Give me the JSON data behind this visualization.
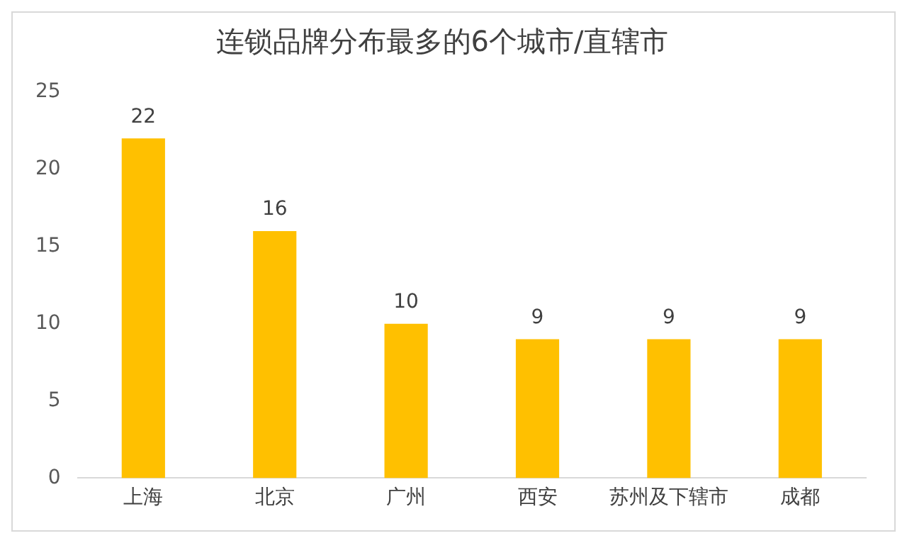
{
  "chart_data": {
    "type": "bar",
    "title": "连锁品牌分布最多的6个城市/直辖市",
    "categories": [
      "上海",
      "北京",
      "广州",
      "西安",
      "苏州及下辖市",
      "成都"
    ],
    "values": [
      22,
      16,
      10,
      9,
      9,
      9
    ],
    "color": "#ffc000",
    "ylim": [
      0,
      25
    ],
    "yticks": [
      0,
      5,
      10,
      15,
      20,
      25
    ],
    "grid": false,
    "legend": false,
    "data_labels": true
  }
}
